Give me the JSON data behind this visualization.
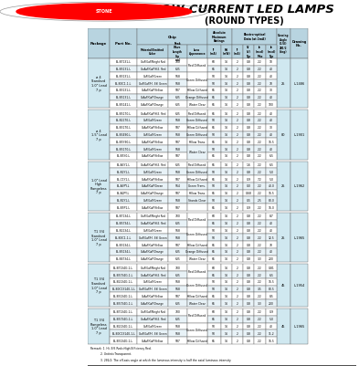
{
  "title_main": "LOW-CURRENT LED LAMPS",
  "title_sub": "(ROUND TYPES)",
  "bg_color": "#c8dfe8",
  "table_bg": "#ddeef5",
  "white": "#ffffff",
  "sections": [
    {
      "package": "ø 4\nStandard\n1.0\" Lead\n7 p",
      "viewing": "25",
      "drawing_no": "L-1486",
      "rows": [
        [
          "BL-B7131-L",
          "GaP/GaP/Bright Red",
          "700",
          "Red Diffused",
          "60",
          "14",
          "2",
          "0.8",
          "2.2",
          "10"
        ],
        [
          "BL-B5131-L",
          "GaAsP/GaP/H.E. Red",
          "635",
          "Red Diffused",
          "65",
          "14",
          "2",
          "0.8",
          "2.2",
          "40"
        ],
        [
          "BL-B3131-L",
          "GaP/GaP/Green",
          "568",
          "Green Diffused",
          "50",
          "14",
          "2",
          "0.8",
          "2.2",
          "40"
        ],
        [
          "BL-B0C1-1-L",
          "GaP/GaP/Hi. Eff. Green",
          "568",
          "Green Diffused",
          "50",
          "14",
          "2",
          "0.8",
          "2.2",
          "70"
        ],
        [
          "BL-B3131-L",
          "GaAsP/GaP/Yellow",
          "587",
          "Yellow Diffused",
          "65",
          "14",
          "2",
          "0.8",
          "2.2",
          "30"
        ],
        [
          "BL-B5131-L",
          "GaAsP/GaP/Orange",
          "635",
          "Orange Diffused",
          "65",
          "14",
          "2",
          "0.8",
          "2.2",
          "40"
        ],
        [
          "BL-B5141-L",
          "GaAsP/GaP/Orange",
          "635",
          "Water Clear",
          "65",
          "14",
          "2",
          "0.8",
          "2.2",
          "100"
        ]
      ]
    },
    {
      "package": "ø 4\n1.5\" Lead\n7 p",
      "viewing": "80",
      "drawing_no": "L-1901",
      "rows": [
        [
          "BL-B5170-L",
          "GaAsP/GaP/H.E. Red",
          "635",
          "Red Diffused",
          "65",
          "14",
          "2",
          "0.8",
          "2.2",
          "40"
        ],
        [
          "BL-B2170-L",
          "GaP/GaP/Green",
          "568",
          "Green Diffused",
          "50",
          "14",
          "2",
          "0.8",
          "2.2",
          "40"
        ],
        [
          "BL-B3170-L",
          "GaAsP/GaP/Yellow",
          "587",
          "Yellow Diffused",
          "65",
          "14",
          "2",
          "0.8",
          "2.2",
          "30"
        ],
        [
          "BL-B3490-L",
          "GaP/GaP/Green",
          "568",
          "Green Diffused",
          "50",
          "14",
          "2",
          "0.8",
          "2.2",
          "40"
        ],
        [
          "BL-B5Y90-L",
          "GaAsP/GaP/Yellow",
          "587",
          "Yellow Trans.",
          "65",
          "14",
          "2",
          "0.8",
          "2.2",
          "16.5"
        ],
        [
          "BL-B5170-L",
          "GaP/GaP/Green",
          "568",
          "Water Clear",
          "50",
          "14",
          "2",
          "0.8",
          "2.2",
          "40"
        ],
        [
          "BL-B5Y0-L",
          "GaAsP/GaP/Yellow",
          "587",
          "Water Clear",
          "65",
          "14",
          "2",
          "0.8",
          "2.2",
          "6.5"
        ]
      ]
    },
    {
      "package": "1.0\" Lead\nHigh\nFlangeless\n7 p",
      "viewing": "25",
      "drawing_no": "L-1962",
      "rows": [
        [
          "BL-A5Y1-L",
          "GaAsP/GaP/H.E. Red",
          "635",
          "Red Diffused",
          "65",
          "14",
          "2",
          "1.6",
          "2.2",
          "6.5"
        ],
        [
          "BL-B2Y1-L",
          "GaP/GaP/Green",
          "568",
          "Green Diffused",
          "50",
          "14",
          "2",
          "0.8",
          "2.2",
          "5.0"
        ],
        [
          "BL-C1Y1-L",
          "GaAsP/GaP/Yellow",
          "587",
          "Yellow Diffused",
          "65",
          "14",
          "2",
          "0.9",
          "7.2",
          "5.0"
        ],
        [
          "BL-A5PY-L",
          "GaAsP/GaP/Green",
          "564",
          "Green Trans.",
          "50",
          "14",
          "2",
          "0.0",
          "2.2",
          "40.0"
        ],
        [
          "BL-A1PY-L",
          "GaAsP/GaP/Orange",
          "587",
          "Yellow Trans.",
          "65",
          "14",
          "2",
          "0.68",
          "2.2",
          "16.5"
        ],
        [
          "BL-B2Y1-L",
          "GaP/GaP/Green",
          "568",
          "Stands Clear",
          "50",
          "14",
          "2",
          "0.5",
          "2.5",
          "80.0"
        ],
        [
          "BL-B5P1-L",
          "GaAsP/GaP/Yellow",
          "587",
          "",
          "65",
          "14",
          "2",
          "0.9",
          "2.2",
          "16.0"
        ]
      ]
    },
    {
      "package": "T-1 3/4\nStandard\n1.0\" Lead\n7 p",
      "viewing": "25",
      "drawing_no": "L-1965",
      "rows": [
        [
          "BL-B7134-L",
          "GaP/GaP/Bright Red",
          "700",
          "Red Diffused",
          "60",
          "14",
          "2",
          "0.8",
          "2.2",
          "8.7"
        ],
        [
          "BL-B5734-L",
          "GaAsP/GaP/H.E. Red",
          "635",
          "Red Diffused",
          "65",
          "14",
          "2",
          "0.8",
          "2.2",
          "40"
        ],
        [
          "BL-B2134-L",
          "GaP/GaP/Green",
          "568",
          "Green Diffused",
          "50",
          "14",
          "2",
          "0.8",
          "2.2",
          "40"
        ],
        [
          "BL-B0C1-1-L",
          "GaP/GaP/Hi. Eff. Green",
          "568",
          "Green Diffused",
          "50",
          "14",
          "2",
          "0.8",
          "2.2",
          "12.5"
        ],
        [
          "BL-B3134-L",
          "GaAsP/GaP/Yellow",
          "587",
          "Yellow Diffused",
          "65",
          "14",
          "2",
          "0.8",
          "2.2",
          "70"
        ],
        [
          "BL-B5134-L",
          "GaAsP/GaP/Orange",
          "635",
          "Orange Diffused",
          "65",
          "14",
          "2",
          "0.8",
          "2.2",
          "40"
        ],
        [
          "BL-B4734-L",
          "GaAsP/GaP/Orange",
          "635",
          "Water Clear",
          "65",
          "14",
          "2",
          "0.8",
          "3.3",
          "200"
        ]
      ]
    },
    {
      "package": "T-1 3/4\nStandard\n1.0\" Lead\n7 p",
      "viewing": "45",
      "drawing_no": "L-1954",
      "rows": [
        [
          "BL-B7134G-1-L",
          "GaP/GaP/Bright Red",
          "700",
          "Red Diffused",
          "60",
          "14",
          "2",
          "0.8",
          "2.2",
          "0.81"
        ],
        [
          "BL-B5734G-1-L",
          "GaAsP/GaP/H.E. Red",
          "635",
          "Red Diffused",
          "65",
          "14",
          "2",
          "0.8",
          "2.2",
          "6.5"
        ],
        [
          "BL-B2134G-1-L",
          "GaP/GaP/Green",
          "568",
          "Green Diffused",
          "50",
          "14",
          "2",
          "0.8",
          "2.2",
          "16.5"
        ],
        [
          "BL-B0C13140-1-L",
          "GaP/GaP/Hi. Eff. Green",
          "568",
          "Green Diffused",
          "50",
          "14",
          "2",
          "0.8",
          "3.5",
          "80.5"
        ],
        [
          "BL-B3134G-1-L",
          "GaAsP/GaP/Yellow",
          "587",
          "Yellow Diffused",
          "65",
          "14",
          "2",
          "0.8",
          "2.2",
          "8.5"
        ],
        [
          "BL-B5734G-1-L",
          "GaAsP/GaP/Orange",
          "635",
          "Water Clear",
          "65",
          "14",
          "2",
          "0.8",
          "3.3",
          "200"
        ]
      ]
    },
    {
      "package": "T-1 3/4\nFlangeless\n1.0\" Lead\n7 p",
      "viewing": "45",
      "drawing_no": "L-1965",
      "rows": [
        [
          "BL-B7134G-1-L",
          "GaP/GaP/Bright Red",
          "700",
          "Red Diffused",
          "60",
          "14",
          "2",
          "0.8",
          "2.2",
          "0.9"
        ],
        [
          "BL-B5734G-1-L",
          "GaAsP/GaP/H.E. Red",
          "635",
          "Red Diffused",
          "65",
          "14",
          "2",
          "0.8",
          "2.2",
          "5.0"
        ],
        [
          "BL-B2134G-1-L",
          "GaP/GaP/Green",
          "568",
          "Green Diffused",
          "50",
          "14",
          "2",
          "0.8",
          "2.2",
          "40"
        ],
        [
          "BL-B0C13140-1-L",
          "GaP/GaP/Hi. Eff. Green",
          "568",
          "Green Diffused",
          "50",
          "14",
          "2",
          "0.8",
          "2.2",
          "11.2"
        ],
        [
          "BL-B3134G-1-L",
          "GaAsP/GaP/Yellow",
          "587",
          "Yellow Diffused",
          "65",
          "14",
          "2",
          "0.8",
          "2.2",
          "16.5"
        ]
      ]
    }
  ],
  "remarks": [
    "Remark: 1. Hi. Eff. Red=High Efficiency Red.",
    "           2. Untint=Transparent.",
    "           3. 2θ1/2: The off-axis angle at which the luminous intensity is half the axial luminous intensity."
  ]
}
